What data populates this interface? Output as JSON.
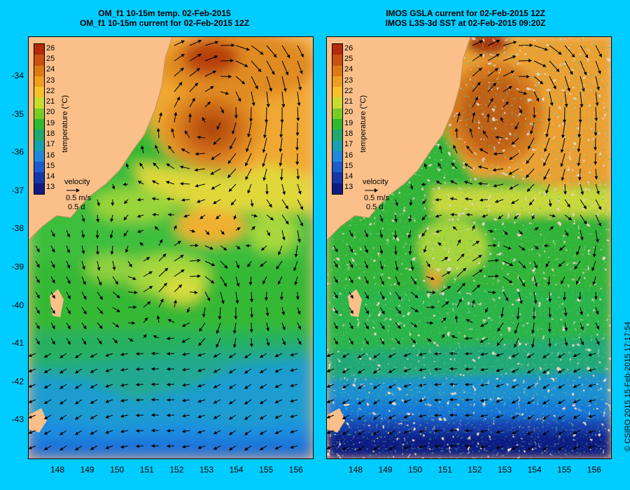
{
  "left_panel": {
    "title_line1": "OM_f1 10-15m temp. 02-Feb-2015",
    "title_line2": "OM_f1 10-15m current for 02-Feb-2015 12Z"
  },
  "right_panel": {
    "title_line1": "IMOS GSLA current for 02-Feb-2015 12Z",
    "title_line2": "IMOS L3S-3d SST at 02-Feb-2015 09:20Z"
  },
  "y_axis": {
    "ticks": [
      "-34",
      "-35",
      "-36",
      "-37",
      "-38",
      "-39",
      "-40",
      "-41",
      "-42",
      "-43"
    ]
  },
  "x_axis": {
    "ticks": [
      "148",
      "149",
      "150",
      "151",
      "152",
      "153",
      "154",
      "155",
      "156"
    ]
  },
  "colorbar": {
    "title": "temperature (°C)",
    "ticks": [
      "26",
      "25",
      "24",
      "23",
      "22",
      "21",
      "20",
      "19",
      "18",
      "17",
      "16",
      "15",
      "14",
      "13"
    ],
    "colors": [
      "#b52a0a",
      "#c8520e",
      "#dc7a16",
      "#ee9e22",
      "#f8c028",
      "#c8dc30",
      "#78cc28",
      "#30b830",
      "#20a870",
      "#18a0b0",
      "#2088dc",
      "#1c5ccc",
      "#1438a8",
      "#101c84"
    ]
  },
  "velocity_legend": {
    "label": "velocity",
    "speed": "0.5 m/s",
    "duration": "0.5 d"
  },
  "credit": "© CSIRO 2015   15-Feb-2015 17:17:54",
  "colors": {
    "background": "#00ccff",
    "land": "#fbc08a",
    "warm_eddy": "#d8751c",
    "cloud_mask": "#c8a888"
  }
}
